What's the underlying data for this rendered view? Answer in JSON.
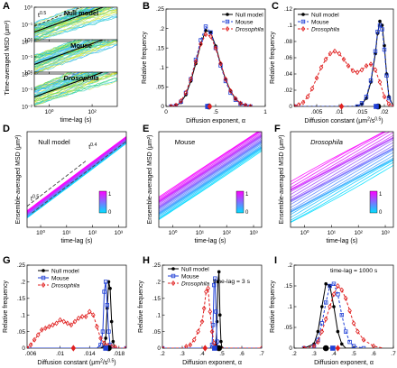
{
  "chart_data": [
    {
      "id": "A",
      "type": "line",
      "panel_letter": "A",
      "ylabel": "Time-averaged MSD (μm²)",
      "xlabel": "time-lag (s)",
      "xscale": "log",
      "yscale": "log",
      "xlim": [
        0.2,
        1500
      ],
      "xticks": [
        {
          "v": 1,
          "label": "10⁰"
        },
        {
          "v": 100,
          "label": "10²"
        }
      ],
      "subpanels": [
        {
          "label": "Null model",
          "annotation": "t^0.5",
          "annotation_base": "t",
          "annotation_exp": "0.5",
          "ylim": [
            0.01,
            1
          ],
          "yticks": [
            {
              "v": 1,
              "label": "10⁰"
            },
            {
              "v": 0.1,
              "label": "10⁻¹"
            },
            {
              "v": 0.01,
              "label": "10⁻²"
            }
          ]
        },
        {
          "label": "Mouse",
          "annotation": "",
          "ylim": [
            0.01,
            1
          ],
          "yticks": [
            {
              "v": 1,
              "label": "10⁰"
            },
            {
              "v": 0.1,
              "label": "10⁻¹"
            },
            {
              "v": 0.01,
              "label": "10⁻²"
            }
          ]
        },
        {
          "label": "Drosophila",
          "annotation": "",
          "ylim": [
            0.01,
            1
          ],
          "yticks": [
            {
              "v": 1,
              "label": "10⁰"
            },
            {
              "v": 0.1,
              "label": "10⁻¹"
            },
            {
              "v": 0.01,
              "label": "10⁻²"
            }
          ]
        }
      ]
    },
    {
      "id": "B",
      "type": "line",
      "panel_letter": "B",
      "xlabel": "Diffusion exponent, α",
      "ylabel": "Relative frequency",
      "xlim": [
        0,
        1
      ],
      "ylim": [
        0,
        0.25
      ],
      "xticks": [
        0,
        0.5,
        1
      ],
      "yticks": [
        0,
        0.05,
        0.1,
        0.15,
        0.2,
        0.25
      ],
      "legend_position": "top-right",
      "series": [
        {
          "name": "Null model",
          "color": "#000000",
          "marker": "circle",
          "dash": "solid",
          "x": [
            0.05,
            0.1,
            0.15,
            0.2,
            0.25,
            0.3,
            0.35,
            0.4,
            0.45,
            0.5,
            0.55,
            0.6,
            0.65,
            0.7,
            0.75,
            0.8,
            0.85
          ],
          "y": [
            0,
            0.002,
            0.01,
            0.03,
            0.065,
            0.11,
            0.16,
            0.195,
            0.19,
            0.155,
            0.11,
            0.07,
            0.04,
            0.02,
            0.008,
            0.003,
            0
          ]
        },
        {
          "name": "Mouse",
          "color": "#1f3fd6",
          "marker": "square",
          "dash": "dashed",
          "x": [
            0.05,
            0.1,
            0.15,
            0.2,
            0.25,
            0.3,
            0.35,
            0.4,
            0.45,
            0.5,
            0.55,
            0.6,
            0.65,
            0.7,
            0.75,
            0.8,
            0.85
          ],
          "y": [
            0,
            0.002,
            0.012,
            0.035,
            0.07,
            0.12,
            0.17,
            0.205,
            0.19,
            0.15,
            0.105,
            0.065,
            0.035,
            0.017,
            0.007,
            0.002,
            0
          ]
        },
        {
          "name": "Drosophila",
          "color": "#e02020",
          "marker": "diamond",
          "dash": "dashed",
          "x": [
            0.05,
            0.1,
            0.15,
            0.2,
            0.25,
            0.3,
            0.35,
            0.4,
            0.45,
            0.5,
            0.55,
            0.6,
            0.65,
            0.7,
            0.75,
            0.8,
            0.85
          ],
          "y": [
            0,
            0.003,
            0.014,
            0.035,
            0.07,
            0.115,
            0.16,
            0.185,
            0.18,
            0.15,
            0.11,
            0.07,
            0.04,
            0.02,
            0.008,
            0.003,
            0
          ]
        }
      ],
      "mean_markers": [
        {
          "x": 0.43,
          "color": "#000000",
          "marker": "circle"
        },
        {
          "x": 0.42,
          "color": "#1f3fd6",
          "marker": "square"
        },
        {
          "x": 0.44,
          "color": "#e02020",
          "marker": "diamond"
        }
      ]
    },
    {
      "id": "C",
      "type": "line",
      "panel_letter": "C",
      "xlabel": "Diffusion constant (μm²/s^0.5)",
      "xlabel_main": "Diffusion constant (μm",
      "xlabel_sup": "2",
      "xlabel_mid": "/s",
      "xlabel_sup2": "0.5",
      "xlabel_end": ")",
      "ylabel": "Relative frequency",
      "xlim": [
        0,
        0.022
      ],
      "ylim": [
        0,
        0.12
      ],
      "xticks": [
        0.005,
        0.01,
        0.015,
        0.02
      ],
      "yticks": [
        0,
        0.02,
        0.04,
        0.06,
        0.08,
        0.1,
        0.12
      ],
      "legend_position": "top-left",
      "series": [
        {
          "name": "Null model",
          "color": "#000000",
          "marker": "circle",
          "dash": "solid",
          "x": [
            0.0001,
            0.012,
            0.014,
            0.015,
            0.016,
            0.017,
            0.018,
            0.0185,
            0.019,
            0.0195,
            0.02,
            0.0205,
            0.021,
            0.022
          ],
          "y": [
            0,
            0,
            0,
            0.003,
            0.01,
            0.03,
            0.065,
            0.09,
            0.105,
            0.1,
            0.075,
            0.04,
            0.012,
            0
          ]
        },
        {
          "name": "Mouse",
          "color": "#1f3fd6",
          "marker": "square",
          "dash": "dashed",
          "x": [
            0.0001,
            0.012,
            0.014,
            0.015,
            0.016,
            0.017,
            0.018,
            0.0185,
            0.019,
            0.0195,
            0.02,
            0.0205,
            0.021,
            0.022
          ],
          "y": [
            0,
            0,
            0,
            0.004,
            0.012,
            0.032,
            0.068,
            0.092,
            0.1,
            0.095,
            0.07,
            0.038,
            0.01,
            0
          ]
        },
        {
          "name": "Drosophila",
          "color": "#e02020",
          "marker": "diamond",
          "dash": "dashed",
          "x": [
            0.0001,
            0.001,
            0.002,
            0.003,
            0.004,
            0.005,
            0.006,
            0.007,
            0.008,
            0.009,
            0.01,
            0.011,
            0.012,
            0.013,
            0.014,
            0.015,
            0.016,
            0.017,
            0.018,
            0.019,
            0.02,
            0.021,
            0.022
          ],
          "y": [
            0,
            0.002,
            0.005,
            0.012,
            0.022,
            0.035,
            0.048,
            0.058,
            0.065,
            0.068,
            0.065,
            0.058,
            0.05,
            0.044,
            0.042,
            0.045,
            0.05,
            0.052,
            0.045,
            0.03,
            0.012,
            0.003,
            0
          ]
        }
      ],
      "mean_markers": [
        {
          "x": 0.0186,
          "color": "#000000",
          "marker": "circle"
        },
        {
          "x": 0.0182,
          "color": "#1f3fd6",
          "marker": "square"
        },
        {
          "x": 0.0105,
          "color": "#e02020",
          "marker": "diamond"
        }
      ]
    },
    {
      "id": "D",
      "type": "line",
      "panel_letter": "D",
      "label": "Null model",
      "ylabel": "Ensemble-averaged MSD (μm²)",
      "xlabel": "time-lag (s)",
      "xscale": "log",
      "yscale": "log",
      "xlim": [
        0.3,
        2000
      ],
      "ylim": [
        0.02,
        3
      ],
      "xticks": [
        {
          "v": 1,
          "label": "10⁰"
        },
        {
          "v": 10,
          "label": "10¹"
        },
        {
          "v": 100,
          "label": "10²"
        },
        {
          "v": 1000,
          "label": "10³"
        }
      ],
      "annotations": [
        {
          "base": "t",
          "exp": "0.4"
        },
        {
          "base": "t",
          "exp": "0.5"
        }
      ],
      "colorbar": {
        "min": "0",
        "max": "1",
        "from": "#00e0ff",
        "to": "#ff00ff"
      }
    },
    {
      "id": "E",
      "type": "line",
      "panel_letter": "E",
      "label": "Mouse",
      "ylabel": "Ensemble-averaged MSD (μm²)",
      "xlabel": "time-lag (s)",
      "xscale": "log",
      "yscale": "log",
      "xlim": [
        0.3,
        2000
      ],
      "xticks": [
        {
          "v": 1,
          "label": "10⁰"
        },
        {
          "v": 10,
          "label": "10¹"
        },
        {
          "v": 100,
          "label": "10²"
        },
        {
          "v": 1000,
          "label": "10³"
        }
      ],
      "colorbar": {
        "min": "0",
        "max": "1",
        "from": "#00e0ff",
        "to": "#ff00ff"
      }
    },
    {
      "id": "F",
      "type": "line",
      "panel_letter": "F",
      "label": "Drosophila",
      "ylabel": "Ensemble-averaged MSD (μm²)",
      "xlabel": "time-lag (s)",
      "xscale": "log",
      "yscale": "log",
      "xlim": [
        0.3,
        2000
      ],
      "xticks": [
        {
          "v": 1,
          "label": "10⁰"
        },
        {
          "v": 10,
          "label": "10¹"
        },
        {
          "v": 100,
          "label": "10²"
        },
        {
          "v": 1000,
          "label": "10³"
        }
      ],
      "colorbar": {
        "min": "0",
        "max": "1",
        "from": "#00e0ff",
        "to": "#ff00ff"
      }
    },
    {
      "id": "G",
      "type": "line",
      "panel_letter": "G",
      "xlabel": "Diffusion constant (μm²/s^0.5)",
      "xlabel_main": "Diffusion constant (μm",
      "xlabel_sup": "2",
      "xlabel_mid": "/s",
      "xlabel_sup2": "0.5",
      "xlabel_end": ")",
      "ylabel": "Relative frequency",
      "xlim": [
        0.0055,
        0.019
      ],
      "ylim": [
        0,
        0.25
      ],
      "xticks": [
        0.006,
        0.01,
        0.014,
        0.018
      ],
      "yticks": [
        0,
        0.05,
        0.1,
        0.15,
        0.2,
        0.25
      ],
      "legend_position": "top-left",
      "series": [
        {
          "name": "Null model",
          "color": "#000000",
          "marker": "circle",
          "dash": "solid",
          "x": [
            0.0055,
            0.0155,
            0.016,
            0.0162,
            0.0164,
            0.0166,
            0.0168,
            0.017,
            0.0172,
            0.0174,
            0.019
          ],
          "y": [
            0,
            0,
            0.005,
            0.03,
            0.12,
            0.2,
            0.18,
            0.08,
            0.02,
            0,
            0
          ]
        },
        {
          "name": "Mouse",
          "color": "#1f3fd6",
          "marker": "square",
          "dash": "solid",
          "x": [
            0.0055,
            0.015,
            0.0155,
            0.0158,
            0.016,
            0.0162,
            0.0164,
            0.0166,
            0.0168,
            0.017,
            0.019
          ],
          "y": [
            0,
            0,
            0.01,
            0.05,
            0.17,
            0.2,
            0.13,
            0.05,
            0.01,
            0,
            0
          ]
        },
        {
          "name": "Drosophila",
          "color": "#e02020",
          "marker": "diamond",
          "dash": "dashed",
          "x": [
            0.0055,
            0.006,
            0.0065,
            0.007,
            0.0075,
            0.008,
            0.0085,
            0.009,
            0.0095,
            0.01,
            0.0105,
            0.011,
            0.0115,
            0.012,
            0.0125,
            0.013,
            0.0135,
            0.014,
            0.0145,
            0.015,
            0.0155,
            0.016,
            0.0165,
            0.017,
            0.0175,
            0.018,
            0.019
          ],
          "y": [
            0,
            0.01,
            0.025,
            0.04,
            0.055,
            0.06,
            0.065,
            0.07,
            0.075,
            0.085,
            0.08,
            0.075,
            0.07,
            0.08,
            0.09,
            0.095,
            0.095,
            0.11,
            0.1,
            0.065,
            0.03,
            0.015,
            0.008,
            0.005,
            0.003,
            0,
            0
          ]
        }
      ],
      "mean_markers": [
        {
          "x": 0.0166,
          "color": "#000000",
          "marker": "circle"
        },
        {
          "x": 0.0162,
          "color": "#1f3fd6",
          "marker": "square"
        },
        {
          "x": 0.0118,
          "color": "#e02020",
          "marker": "diamond"
        }
      ]
    },
    {
      "id": "H",
      "type": "line",
      "panel_letter": "H",
      "annotation": "time-lag = 3 s",
      "xlabel": "Diffusion exponent, α",
      "ylabel": "Relative frequency",
      "xlim": [
        0.2,
        0.7
      ],
      "ylim": [
        0,
        0.25
      ],
      "xticks": [
        0.2,
        0.3,
        0.4,
        0.5,
        0.6,
        0.7
      ],
      "yticks": [
        0,
        0.05,
        0.1,
        0.15,
        0.2,
        0.25
      ],
      "legend_position": "top-left",
      "series": [
        {
          "name": "Null model",
          "color": "#000000",
          "marker": "circle",
          "dash": "solid",
          "x": [
            0.2,
            0.46,
            0.47,
            0.475,
            0.48,
            0.485,
            0.49,
            0.495,
            0.5,
            0.7
          ],
          "y": [
            0,
            0,
            0.01,
            0.08,
            0.2,
            0.23,
            0.1,
            0.02,
            0,
            0
          ]
        },
        {
          "name": "Mouse",
          "color": "#1f3fd6",
          "marker": "square",
          "dash": "solid",
          "x": [
            0.2,
            0.44,
            0.45,
            0.455,
            0.46,
            0.465,
            0.47,
            0.475,
            0.48,
            0.7
          ],
          "y": [
            0,
            0,
            0.01,
            0.07,
            0.19,
            0.21,
            0.11,
            0.02,
            0,
            0
          ]
        },
        {
          "name": "Drosophila",
          "color": "#e02020",
          "marker": "diamond",
          "dash": "dashed",
          "x": [
            0.2,
            0.3,
            0.32,
            0.34,
            0.36,
            0.38,
            0.4,
            0.41,
            0.42,
            0.43,
            0.44,
            0.45,
            0.46,
            0.48,
            0.7
          ],
          "y": [
            0,
            0,
            0.005,
            0.01,
            0.025,
            0.05,
            0.08,
            0.12,
            0.17,
            0.18,
            0.11,
            0.05,
            0.015,
            0,
            0
          ]
        }
      ],
      "mean_markers": [
        {
          "x": 0.485,
          "color": "#000000",
          "marker": "circle"
        },
        {
          "x": 0.463,
          "color": "#1f3fd6",
          "marker": "square"
        },
        {
          "x": 0.415,
          "color": "#e02020",
          "marker": "diamond"
        }
      ]
    },
    {
      "id": "I",
      "type": "line",
      "panel_letter": "I",
      "annotation": "time-lag = 1000 s",
      "xlabel": "Diffusion exponent, α",
      "ylabel": "Relative frequency",
      "xlim": [
        0.2,
        0.7
      ],
      "ylim": [
        0,
        0.2
      ],
      "xticks": [
        0.2,
        0.3,
        0.4,
        0.5,
        0.6,
        0.7
      ],
      "yticks": [
        0,
        0.05,
        0.1,
        0.15,
        0.2
      ],
      "series": [
        {
          "name": "Null model",
          "color": "#000000",
          "marker": "circle",
          "dash": "solid",
          "x": [
            0.25,
            0.3,
            0.32,
            0.34,
            0.36,
            0.38,
            0.4,
            0.42,
            0.44,
            0.46,
            0.5
          ],
          "y": [
            0,
            0.01,
            0.04,
            0.1,
            0.155,
            0.15,
            0.1,
            0.04,
            0.01,
            0,
            0
          ]
        },
        {
          "name": "Mouse",
          "color": "#1f3fd6",
          "marker": "square",
          "dash": "dashed",
          "x": [
            0.25,
            0.3,
            0.32,
            0.34,
            0.36,
            0.38,
            0.4,
            0.42,
            0.44,
            0.46,
            0.48,
            0.5,
            0.55
          ],
          "y": [
            0,
            0.005,
            0.02,
            0.06,
            0.11,
            0.15,
            0.155,
            0.13,
            0.08,
            0.04,
            0.015,
            0.005,
            0
          ]
        },
        {
          "name": "Drosophila",
          "color": "#e02020",
          "marker": "diamond",
          "dash": "dashed",
          "x": [
            0.25,
            0.3,
            0.32,
            0.34,
            0.36,
            0.38,
            0.4,
            0.42,
            0.44,
            0.46,
            0.48,
            0.5,
            0.52,
            0.55,
            0.6,
            0.65
          ],
          "y": [
            0,
            0.005,
            0.015,
            0.04,
            0.07,
            0.1,
            0.13,
            0.15,
            0.14,
            0.12,
            0.09,
            0.06,
            0.04,
            0.02,
            0.005,
            0
          ]
        }
      ],
      "mean_markers": [
        {
          "x": 0.36,
          "color": "#000000",
          "marker": "circle"
        },
        {
          "x": 0.395,
          "color": "#1f3fd6",
          "marker": "square"
        },
        {
          "x": 0.42,
          "color": "#e02020",
          "marker": "diamond"
        }
      ]
    }
  ]
}
